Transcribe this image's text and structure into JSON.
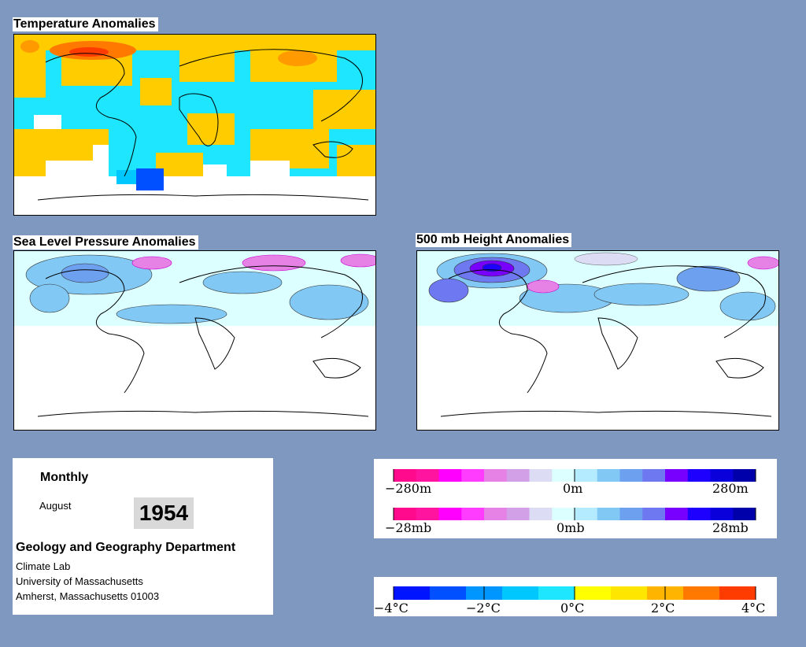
{
  "maps": {
    "temperature_title": "Temperature Anomalies",
    "slp_title": "Sea Level Pressure Anomalies",
    "height_title": "500 mb Height Anomalies"
  },
  "info": {
    "period": "Monthly",
    "month": "August",
    "year": "1954",
    "department": "Geology and Geography Department",
    "lab": "Climate Lab",
    "university": "University of Massachusetts",
    "address": "Amherst, Massachusetts 01003"
  },
  "legends": {
    "height": {
      "labels": [
        "−280m",
        "0m",
        "280m"
      ]
    },
    "pressure": {
      "labels": [
        "−28mb",
        "0mb",
        "28mb"
      ]
    },
    "temperature": {
      "labels": [
        "−4°C",
        "−2°C",
        "0°C",
        "2°C",
        "4°C"
      ]
    },
    "pressure_colors": [
      "#ff0a8c",
      "#ff14a0",
      "#ff00ff",
      "#ff3cff",
      "#e682e6",
      "#d2a0e6",
      "#dcdcf5",
      "#dcffff",
      "#b4ebff",
      "#82c8f5",
      "#6ea0f0",
      "#6e78f0",
      "#7800ff",
      "#1e00ff",
      "#0a00dc",
      "#0000aa"
    ],
    "temperature_colors": [
      "#0014ff",
      "#0050ff",
      "#0096ff",
      "#00c8ff",
      "#1ee6ff",
      "#ffff00",
      "#ffe600",
      "#ffb400",
      "#ff7800",
      "#ff3c00"
    ]
  },
  "colors": {
    "background": "#7f98bf",
    "temp_cold": "#1ee6ff",
    "temp_warm": "#ffcc00",
    "slp_negative": "#82c8f5",
    "height_negative": "#6e78f0"
  }
}
